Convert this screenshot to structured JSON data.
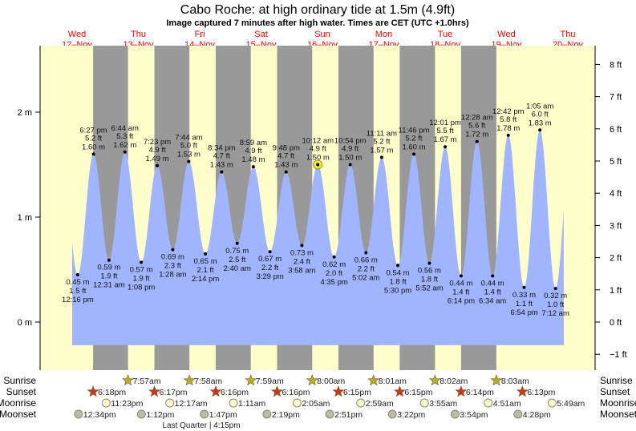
{
  "header": {
    "title": "Cabo Roche: at high  ordinary tide at 1.5m (4.9ft)",
    "subtitle": "Image captured 7 minutes after high water. Times are CET (UTC +1.0hrs)"
  },
  "days": [
    {
      "name": "Wed",
      "date": "12–Nov"
    },
    {
      "name": "Thu",
      "date": "13–Nov"
    },
    {
      "name": "Fri",
      "date": "14–Nov"
    },
    {
      "name": "Sat",
      "date": "15–Nov"
    },
    {
      "name": "Sun",
      "date": "16–Nov"
    },
    {
      "name": "Mon",
      "date": "17–Nov"
    },
    {
      "name": "Tue",
      "date": "18–Nov"
    },
    {
      "name": "Wed",
      "date": "19–Nov"
    },
    {
      "name": "Thu",
      "date": "20–Nov"
    }
  ],
  "colors": {
    "day": "#ffffcc",
    "night": "#999999",
    "water": "#a0b4ff",
    "day_label": "#ff0000",
    "sunrise_star": "#b5ac2f",
    "sunset_star": "#cc3322",
    "moonrise": "#ffffcc",
    "moonset": "#bbbbaa"
  },
  "chart_data": {
    "type": "area",
    "title": "Cabo Roche: at high  ordinary tide at 1.5m (4.9ft)",
    "left_axis": {
      "unit": "m",
      "ticks": [
        "2 m",
        "1 m",
        "0 m"
      ],
      "values": [
        2,
        1,
        0
      ],
      "range": [
        -0.45,
        2.64
      ]
    },
    "right_axis": {
      "unit": "ft",
      "ticks": [
        "8 ft",
        "7 ft",
        "6 ft",
        "5 ft",
        "4 ft",
        "3 ft",
        "2 ft",
        "1 ft",
        "0 ft",
        "−1 ft"
      ],
      "values": [
        8,
        7,
        6,
        5,
        4,
        3,
        2,
        1,
        0,
        -1
      ]
    },
    "current_extreme_index": 15,
    "extremes": [
      {
        "day": 0,
        "type": "low",
        "time": "12:16 pm",
        "m": "0.45 m",
        "ft": "1.5 ft",
        "value": 0.45
      },
      {
        "day": 0,
        "type": "high",
        "time": "6:27 pm",
        "m": "1.60 m",
        "ft": "5.2 ft",
        "value": 1.6
      },
      {
        "day": 1,
        "type": "low",
        "time": "12:31 am",
        "m": "0.59 m",
        "ft": "1.9 ft",
        "value": 0.59
      },
      {
        "day": 1,
        "type": "high",
        "time": "6:44 am",
        "m": "1.62 m",
        "ft": "5.3 ft",
        "value": 1.62
      },
      {
        "day": 1,
        "type": "low",
        "time": "1:08 pm",
        "m": "0.57 m",
        "ft": "1.9 ft",
        "value": 0.57
      },
      {
        "day": 1,
        "type": "high",
        "time": "7:23 pm",
        "m": "1.49 m",
        "ft": "4.9 ft",
        "value": 1.49
      },
      {
        "day": 2,
        "type": "low",
        "time": "1:28 am",
        "m": "0.69 m",
        "ft": "2.3 ft",
        "value": 0.69
      },
      {
        "day": 2,
        "type": "high",
        "time": "7:44 am",
        "m": "1.53 m",
        "ft": "5.0 ft",
        "value": 1.53
      },
      {
        "day": 2,
        "type": "low",
        "time": "2:14 pm",
        "m": "0.65 m",
        "ft": "2.1 ft",
        "value": 0.65
      },
      {
        "day": 2,
        "type": "high",
        "time": "8:34 pm",
        "m": "1.43 m",
        "ft": "4.7 ft",
        "value": 1.43
      },
      {
        "day": 3,
        "type": "low",
        "time": "2:40 am",
        "m": "0.75 m",
        "ft": "2.5 ft",
        "value": 0.75
      },
      {
        "day": 3,
        "type": "high",
        "time": "8:59 am",
        "m": "1.48 m",
        "ft": "4.9 ft",
        "value": 1.48
      },
      {
        "day": 3,
        "type": "low",
        "time": "3:29 pm",
        "m": "0.67 m",
        "ft": "2.2 ft",
        "value": 0.67
      },
      {
        "day": 3,
        "type": "high",
        "time": "9:48 pm",
        "m": "1.43 m",
        "ft": "4.7 ft",
        "value": 1.43
      },
      {
        "day": 4,
        "type": "low",
        "time": "3:58 am",
        "m": "0.73 m",
        "ft": "2.4 ft",
        "value": 0.73
      },
      {
        "day": 4,
        "type": "high",
        "time": "10:12 am",
        "m": "1.50 m",
        "ft": "4.9 ft",
        "value": 1.5
      },
      {
        "day": 4,
        "type": "low",
        "time": "4:35 pm",
        "m": "0.62 m",
        "ft": "2.0 ft",
        "value": 0.62
      },
      {
        "day": 4,
        "type": "high",
        "time": "10:54 pm",
        "m": "1.50 m",
        "ft": "4.9 ft",
        "value": 1.5
      },
      {
        "day": 5,
        "type": "low",
        "time": "5:02 am",
        "m": "0.66 m",
        "ft": "2.2 ft",
        "value": 0.66
      },
      {
        "day": 5,
        "type": "high",
        "time": "11:11 am",
        "m": "1.57 m",
        "ft": "5.2 ft",
        "value": 1.57
      },
      {
        "day": 5,
        "type": "low",
        "time": "5:30 pm",
        "m": "0.54 m",
        "ft": "1.8 ft",
        "value": 0.54
      },
      {
        "day": 5,
        "type": "high",
        "time": "11:46 pm",
        "m": "1.60 m",
        "ft": "5.2 ft",
        "value": 1.6
      },
      {
        "day": 6,
        "type": "low",
        "time": "5:52 am",
        "m": "0.56 m",
        "ft": "1.8 ft",
        "value": 0.56
      },
      {
        "day": 6,
        "type": "high",
        "time": "12:01 pm",
        "m": "1.67 m",
        "ft": "5.5 ft",
        "value": 1.67
      },
      {
        "day": 6,
        "type": "low",
        "time": "6:14 pm",
        "m": "0.44 m",
        "ft": "1.4 ft",
        "value": 0.44
      },
      {
        "day": 7,
        "type": "high",
        "time": "12:28 am",
        "m": "1.72 m",
        "ft": "5.6 ft",
        "value": 1.72
      },
      {
        "day": 7,
        "type": "low",
        "time": "6:34 am",
        "m": "0.44 m",
        "ft": "1.4 ft",
        "value": 0.44
      },
      {
        "day": 7,
        "type": "high",
        "time": "12:42 pm",
        "m": "1.78 m",
        "ft": "5.8 ft",
        "value": 1.78
      },
      {
        "day": 7,
        "type": "low",
        "time": "6:54 pm",
        "m": "0.33 m",
        "ft": "1.1 ft",
        "value": 0.33
      },
      {
        "day": 8,
        "type": "high",
        "time": "1:05 am",
        "m": "1.83 m",
        "ft": "6.0 ft",
        "value": 1.83
      },
      {
        "day": 8,
        "type": "low",
        "time": "7:12 am",
        "m": "0.32 m",
        "ft": "1.0 ft",
        "value": 0.32
      }
    ]
  },
  "almanac": {
    "labels": {
      "sunrise": "Sunrise",
      "sunset": "Sunset",
      "moonrise": "Moonrise",
      "moonset": "Moonset"
    },
    "sunrise": [
      {
        "day": 1,
        "time": "7:57am"
      },
      {
        "day": 2,
        "time": "7:58am"
      },
      {
        "day": 3,
        "time": "7:59am"
      },
      {
        "day": 4,
        "time": "8:00am"
      },
      {
        "day": 5,
        "time": "8:01am"
      },
      {
        "day": 6,
        "time": "8:02am"
      },
      {
        "day": 7,
        "time": "8:03am"
      }
    ],
    "sunset": [
      {
        "day": 0,
        "time": "6:18pm"
      },
      {
        "day": 1,
        "time": "6:17pm"
      },
      {
        "day": 2,
        "time": "6:16pm"
      },
      {
        "day": 3,
        "time": "6:16pm"
      },
      {
        "day": 4,
        "time": "6:15pm"
      },
      {
        "day": 5,
        "time": "6:15pm"
      },
      {
        "day": 6,
        "time": "6:14pm"
      },
      {
        "day": 7,
        "time": "6:13pm"
      }
    ],
    "moonrise": [
      {
        "day": 0,
        "time": "11:23pm"
      },
      {
        "day": 2,
        "time": "12:17am"
      },
      {
        "day": 3,
        "time": "1:11am"
      },
      {
        "day": 4,
        "time": "2:05am"
      },
      {
        "day": 5,
        "time": "2:59am"
      },
      {
        "day": 6,
        "time": "3:55am"
      },
      {
        "day": 7,
        "time": "4:51am"
      },
      {
        "day": 8,
        "time": "5:49am"
      }
    ],
    "moonset": [
      {
        "day": 0,
        "time": "12:34pm"
      },
      {
        "day": 1,
        "time": "1:12pm"
      },
      {
        "day": 2,
        "time": "1:47pm"
      },
      {
        "day": 3,
        "time": "2:19pm"
      },
      {
        "day": 4,
        "time": "2:51pm"
      },
      {
        "day": 5,
        "time": "3:22pm"
      },
      {
        "day": 6,
        "time": "3:54pm"
      },
      {
        "day": 7,
        "time": "4:28pm"
      }
    ],
    "moon_phase": "Last Quarter | 4:15pm"
  }
}
